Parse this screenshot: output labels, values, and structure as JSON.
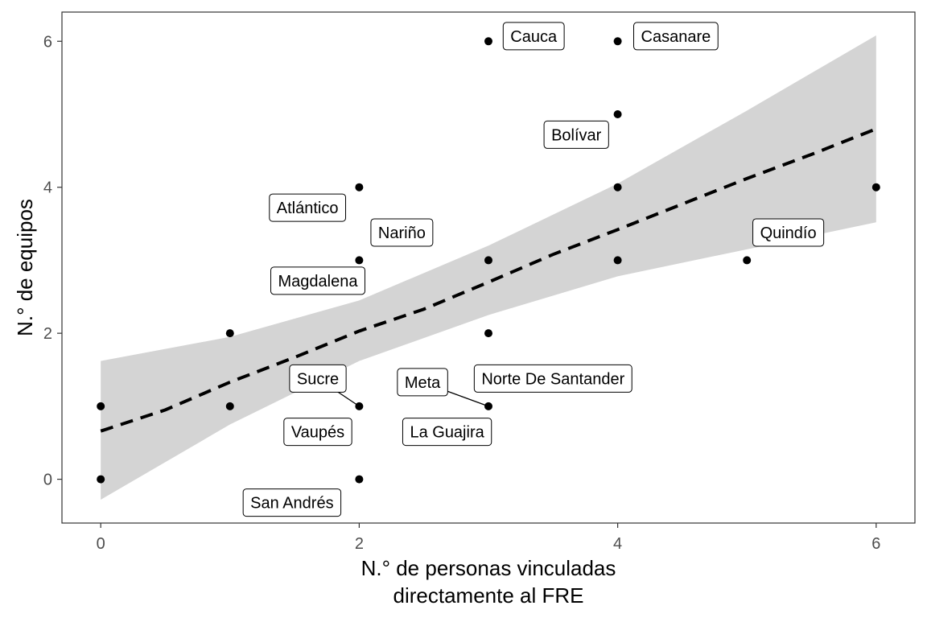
{
  "chart_data": {
    "type": "scatter",
    "xlabel_lines": [
      "N.° de personas vinculadas",
      "directamente al FRE"
    ],
    "ylabel": "N.° de equipos",
    "xlim": [
      -0.3,
      6.3
    ],
    "ylim": [
      -0.6,
      6.4
    ],
    "x_ticks": [
      0,
      2,
      4,
      6
    ],
    "y_ticks": [
      0,
      2,
      4,
      6
    ],
    "grid": false,
    "legend": "none",
    "points": [
      {
        "x": 0,
        "y": 1
      },
      {
        "x": 0,
        "y": 0
      },
      {
        "x": 1,
        "y": 2
      },
      {
        "x": 1,
        "y": 1
      },
      {
        "x": 2,
        "y": 4
      },
      {
        "x": 2,
        "y": 3
      },
      {
        "x": 2,
        "y": 1
      },
      {
        "x": 2,
        "y": 0
      },
      {
        "x": 3,
        "y": 6
      },
      {
        "x": 3,
        "y": 3
      },
      {
        "x": 3,
        "y": 2
      },
      {
        "x": 3,
        "y": 1
      },
      {
        "x": 4,
        "y": 6
      },
      {
        "x": 4,
        "y": 5
      },
      {
        "x": 4,
        "y": 4
      },
      {
        "x": 4,
        "y": 3
      },
      {
        "x": 5,
        "y": 3
      },
      {
        "x": 6,
        "y": 4
      }
    ],
    "trend": {
      "style": "dashed",
      "x": [
        0,
        0.5,
        1,
        1.5,
        2,
        2.5,
        3,
        3.5,
        4,
        4.5,
        5,
        5.5,
        6
      ],
      "y": [
        0.66,
        0.95,
        1.33,
        1.67,
        2.03,
        2.33,
        2.7,
        3.08,
        3.42,
        3.77,
        4.12,
        4.45,
        4.8
      ]
    },
    "confidence_band": {
      "color": "#d4d4d4",
      "x": [
        0,
        1,
        2,
        3,
        4,
        5,
        6
      ],
      "upper": [
        1.62,
        1.95,
        2.45,
        3.2,
        4.05,
        5.05,
        6.08
      ],
      "lower": [
        -0.28,
        0.75,
        1.62,
        2.25,
        2.78,
        3.15,
        3.52
      ]
    },
    "labels": [
      {
        "text": "Cauca",
        "x": 3.35,
        "y": 6.07,
        "leader_to": null
      },
      {
        "text": "Casanare",
        "x": 4.45,
        "y": 6.07,
        "leader_to": null
      },
      {
        "text": "Bolívar",
        "x": 3.68,
        "y": 4.72,
        "leader_to": null
      },
      {
        "text": "Atlántico",
        "x": 1.6,
        "y": 3.72,
        "leader_to": null
      },
      {
        "text": "Nariño",
        "x": 2.33,
        "y": 3.38,
        "leader_to": null
      },
      {
        "text": "Quindío",
        "x": 5.32,
        "y": 3.38,
        "leader_to": null
      },
      {
        "text": "Magdalena",
        "x": 1.68,
        "y": 2.72,
        "leader_to": null
      },
      {
        "text": "Sucre",
        "x": 1.68,
        "y": 1.38,
        "leader_to": {
          "x": 2,
          "y": 1
        }
      },
      {
        "text": "Norte De Santander",
        "x": 3.5,
        "y": 1.38,
        "leader_to": null
      },
      {
        "text": "Meta",
        "x": 2.49,
        "y": 1.33,
        "leader_to": {
          "x": 3,
          "y": 1
        }
      },
      {
        "text": "Vaupés",
        "x": 1.68,
        "y": 0.65,
        "leader_to": null
      },
      {
        "text": "La Guajira",
        "x": 2.68,
        "y": 0.65,
        "leader_to": null
      },
      {
        "text": "San Andrés",
        "x": 1.48,
        "y": -0.32,
        "leader_to": null
      }
    ]
  }
}
